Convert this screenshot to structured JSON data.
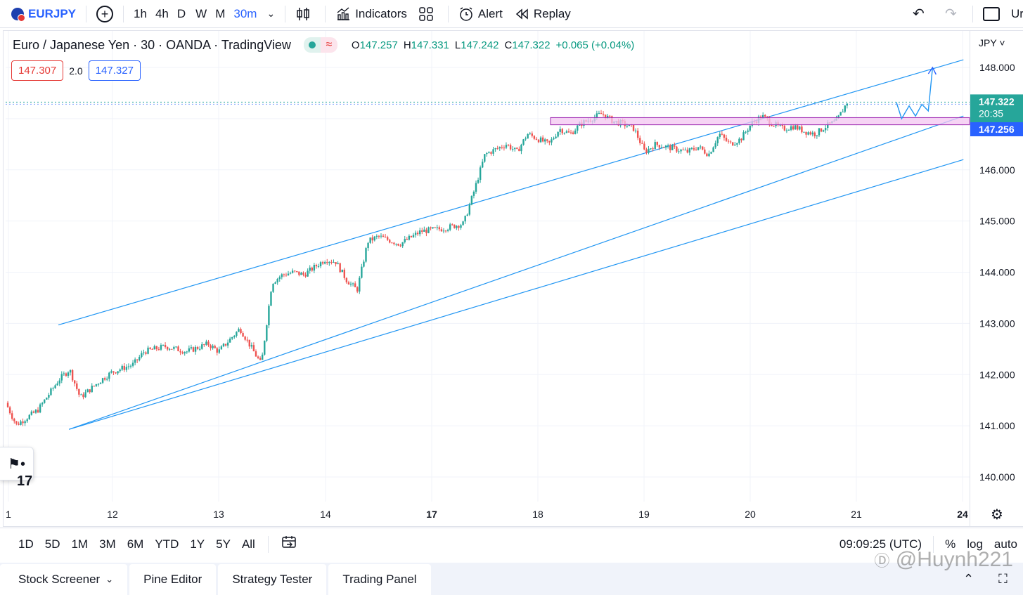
{
  "toolbar": {
    "symbol": "EURJPY",
    "add_icon": "plus-circle-icon",
    "intervals": [
      "1h",
      "4h",
      "D",
      "W",
      "M",
      "30m"
    ],
    "active_interval": "30m",
    "indicators_label": "Indicators",
    "alert_label": "Alert",
    "replay_label": "Replay",
    "cut_label": "Ur"
  },
  "legend": {
    "title": "Euro / Japanese Yen · 30 · OANDA · TradingView",
    "o_key": "O",
    "o_val": "147.257",
    "h_key": "H",
    "h_val": "147.331",
    "l_key": "L",
    "l_val": "147.242",
    "c_key": "C",
    "c_val": "147.322",
    "change": "+0.065 (+0.04%)"
  },
  "quote": {
    "sell": "147.307",
    "spread": "2.0",
    "buy": "147.327"
  },
  "price_axis": {
    "currency": "JPY",
    "labels": [
      "148.000",
      "147.000",
      "146.000",
      "145.000",
      "144.000",
      "143.000",
      "142.000",
      "141.000",
      "140.000"
    ],
    "last_price": "147.322",
    "countdown": "20:35",
    "level_price": "147.256"
  },
  "time_axis": {
    "labels": [
      "1",
      "12",
      "13",
      "14",
      "17",
      "18",
      "19",
      "20",
      "21",
      "24"
    ]
  },
  "range_bar": {
    "ranges": [
      "1D",
      "5D",
      "1M",
      "3M",
      "6M",
      "YTD",
      "1Y",
      "5Y",
      "All"
    ],
    "clock": "09:09:25 (UTC)",
    "percent": "%",
    "log": "log",
    "auto": "auto"
  },
  "bottom_tabs": [
    "Stock Screener",
    "Pine Editor",
    "Strategy Tester",
    "Trading Panel"
  ],
  "watermark": "@Huynh221",
  "colors": {
    "up": "#26a69a",
    "down": "#ef5350",
    "line": "#2196f3",
    "zone": "#f3c6f0",
    "zone_border": "#9c27b0",
    "accent": "#2962ff"
  },
  "chart_data": {
    "type": "candlestick",
    "symbol": "EURJPY",
    "timeframe": "30",
    "ylim": [
      139.5,
      148.3
    ],
    "y_ticks": [
      140,
      141,
      142,
      143,
      144,
      145,
      146,
      147,
      148
    ],
    "x_ticks": [
      "1",
      "12",
      "13",
      "14",
      "17",
      "18",
      "19",
      "20",
      "21",
      "24"
    ],
    "price_path": [
      [
        0,
        141.45
      ],
      [
        1,
        141.02
      ],
      [
        3,
        141.3
      ],
      [
        5,
        141.9
      ],
      [
        6,
        142.1
      ],
      [
        7,
        141.55
      ],
      [
        9,
        141.9
      ],
      [
        10,
        142.05
      ],
      [
        12,
        142.2
      ],
      [
        13,
        142.45
      ],
      [
        15,
        142.55
      ],
      [
        17,
        142.45
      ],
      [
        19,
        142.6
      ],
      [
        20,
        142.45
      ],
      [
        22,
        142.9
      ],
      [
        24,
        142.2
      ],
      [
        25,
        143.8
      ],
      [
        26,
        143.95
      ],
      [
        27,
        144.0
      ],
      [
        28,
        143.95
      ],
      [
        30,
        144.25
      ],
      [
        31,
        144.2
      ],
      [
        32,
        143.85
      ],
      [
        33,
        143.65
      ],
      [
        34,
        144.6
      ],
      [
        35,
        144.7
      ],
      [
        37,
        144.55
      ],
      [
        39,
        144.8
      ],
      [
        41,
        144.85
      ],
      [
        43,
        144.95
      ],
      [
        44,
        145.6
      ],
      [
        45,
        146.3
      ],
      [
        46,
        146.4
      ],
      [
        47,
        146.5
      ],
      [
        48,
        146.35
      ],
      [
        49,
        146.7
      ],
      [
        50,
        146.6
      ],
      [
        51,
        146.5
      ],
      [
        52,
        146.8
      ],
      [
        53,
        146.7
      ],
      [
        54,
        146.9
      ],
      [
        55,
        147.0
      ],
      [
        56,
        147.1
      ],
      [
        57,
        146.95
      ],
      [
        58,
        146.9
      ],
      [
        59,
        146.8
      ],
      [
        60,
        146.35
      ],
      [
        61,
        146.5
      ],
      [
        62,
        146.45
      ],
      [
        63,
        146.4
      ],
      [
        64,
        146.35
      ],
      [
        65,
        146.45
      ],
      [
        66,
        146.3
      ],
      [
        67,
        146.7
      ],
      [
        68,
        146.5
      ],
      [
        69,
        146.6
      ],
      [
        70,
        146.9
      ],
      [
        71,
        147.05
      ],
      [
        72,
        146.9
      ],
      [
        73,
        146.8
      ],
      [
        74,
        146.85
      ],
      [
        75,
        146.75
      ],
      [
        76,
        146.7
      ],
      [
        77,
        146.85
      ],
      [
        78,
        146.95
      ],
      [
        79,
        147.32
      ]
    ],
    "annotations": [
      {
        "type": "upper-channel-line",
        "from": [
          0,
          142.97
        ],
        "to": [
          82,
          148.15
        ]
      },
      {
        "type": "middle-channel-line",
        "from": [
          1,
          140.93
        ],
        "to": [
          82,
          147.05
        ]
      },
      {
        "type": "lower-channel-line",
        "from": [
          1,
          140.93
        ],
        "to": [
          82,
          146.2
        ]
      },
      {
        "type": "resistance-zone",
        "y_range": [
          146.88,
          147.02
        ],
        "x_start": 52
      },
      {
        "type": "projection-path",
        "points": [
          [
            79,
            147.32
          ],
          [
            79.5,
            147.0
          ],
          [
            80.2,
            147.25
          ],
          [
            80.8,
            147.05
          ],
          [
            81.4,
            147.28
          ],
          [
            82,
            147.15
          ],
          [
            82.4,
            148.0
          ]
        ]
      }
    ]
  }
}
